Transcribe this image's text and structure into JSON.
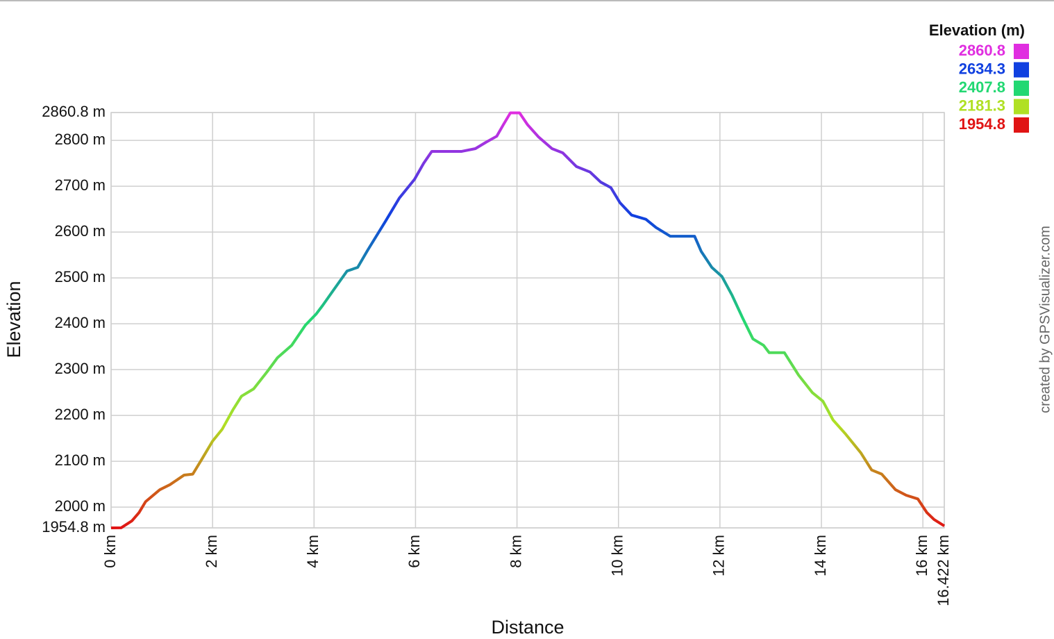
{
  "chart_data": {
    "type": "line",
    "x_label": "Distance",
    "y_label": "Elevation",
    "credit": "created by GPSVisualizer.com",
    "legend_title": "Elevation (m)",
    "color_scale": [
      {
        "value": 2860.8,
        "color": "#e02ee0"
      },
      {
        "value": 2634.3,
        "color": "#1040e0"
      },
      {
        "value": 2407.8,
        "color": "#22d872"
      },
      {
        "value": 2181.3,
        "color": "#b0e024"
      },
      {
        "value": 1954.8,
        "color": "#e01414"
      }
    ],
    "x": [
      0,
      0.2,
      0.41,
      0.55,
      0.68,
      0.96,
      1.16,
      1.44,
      1.61,
      1.78,
      2.0,
      2.19,
      2.4,
      2.57,
      2.81,
      3.08,
      3.28,
      3.56,
      3.83,
      4.04,
      4.17,
      4.38,
      4.65,
      4.86,
      5.06,
      5.41,
      5.68,
      5.98,
      6.16,
      6.32,
      6.57,
      6.91,
      7.18,
      7.39,
      7.6,
      7.73,
      7.87,
      8.05,
      8.21,
      8.42,
      8.69,
      8.9,
      9.17,
      9.44,
      9.65,
      9.85,
      10.03,
      10.26,
      10.54,
      10.74,
      11.02,
      11.36,
      11.5,
      11.63,
      11.84,
      12.04,
      12.24,
      12.45,
      12.65,
      12.86,
      12.97,
      13.27,
      13.55,
      13.82,
      14.03,
      14.23,
      14.48,
      14.78,
      14.99,
      15.19,
      15.46,
      15.67,
      15.9,
      16.08,
      16.22,
      16.422
    ],
    "values": [
      1954.8,
      1955,
      1970,
      1988,
      2012,
      2038,
      2049,
      2070,
      2072,
      2103,
      2144,
      2170,
      2212,
      2242,
      2258,
      2296,
      2326,
      2353,
      2397,
      2421,
      2440,
      2473,
      2515,
      2523,
      2561,
      2624,
      2674,
      2715,
      2750,
      2776,
      2776,
      2776,
      2782,
      2796,
      2809,
      2834,
      2860,
      2860,
      2834,
      2808,
      2782,
      2773,
      2743,
      2731,
      2709,
      2697,
      2664,
      2637,
      2628,
      2610,
      2591,
      2591,
      2591,
      2558,
      2523,
      2503,
      2462,
      2412,
      2367,
      2353,
      2337,
      2337,
      2288,
      2250,
      2231,
      2190,
      2159,
      2118,
      2081,
      2072,
      2038,
      2026,
      2018,
      1988,
      1973,
      1959
    ],
    "xlim": [
      0,
      16.422
    ],
    "ylim": [
      1954.8,
      2860.8
    ],
    "xticks": [
      {
        "value": 0,
        "label": "0 km"
      },
      {
        "value": 2,
        "label": "2 km"
      },
      {
        "value": 4,
        "label": "4 km"
      },
      {
        "value": 6,
        "label": "6 km"
      },
      {
        "value": 8,
        "label": "8 km"
      },
      {
        "value": 10,
        "label": "10 km"
      },
      {
        "value": 12,
        "label": "12 km"
      },
      {
        "value": 14,
        "label": "14 km"
      },
      {
        "value": 16,
        "label": "16 km"
      },
      {
        "value": 16.422,
        "label": "16.422 km"
      }
    ],
    "yticks": [
      {
        "value": 1954.8,
        "label": "1954.8 m"
      },
      {
        "value": 2000,
        "label": "2000 m"
      },
      {
        "value": 2100,
        "label": "2100 m"
      },
      {
        "value": 2200,
        "label": "2200 m"
      },
      {
        "value": 2300,
        "label": "2300 m"
      },
      {
        "value": 2400,
        "label": "2400 m"
      },
      {
        "value": 2500,
        "label": "2500 m"
      },
      {
        "value": 2600,
        "label": "2600 m"
      },
      {
        "value": 2700,
        "label": "2700 m"
      },
      {
        "value": 2800,
        "label": "2800 m"
      },
      {
        "value": 2860.8,
        "label": "2860.8 m"
      }
    ],
    "grid": true
  }
}
